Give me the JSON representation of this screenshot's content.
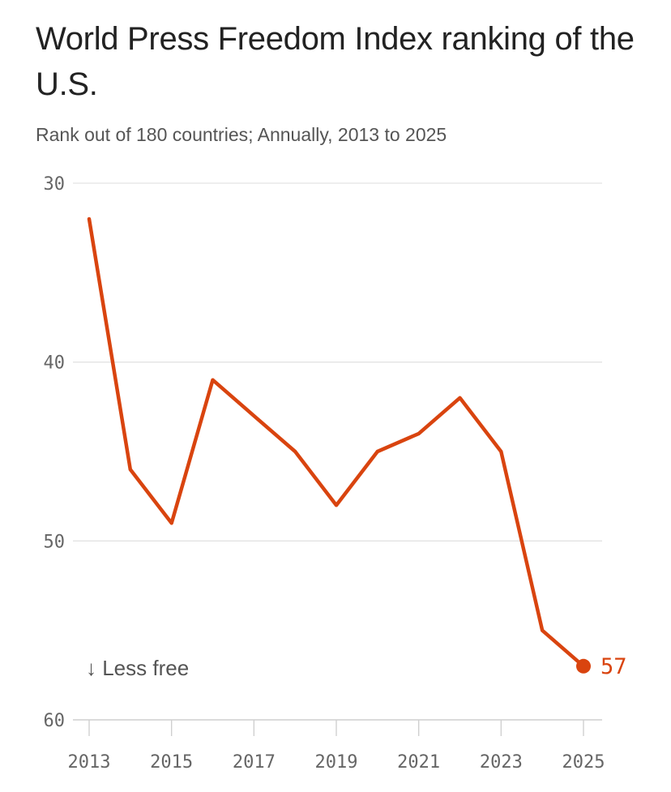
{
  "chart_data": {
    "type": "line",
    "title": "World Press Freedom Index ranking of the U.S.",
    "subtitle": "Rank out of 180 countries; Annually, 2013 to 2025",
    "x": [
      2013,
      2014,
      2015,
      2016,
      2017,
      2018,
      2019,
      2020,
      2021,
      2022,
      2023,
      2024,
      2025
    ],
    "series": [
      {
        "values": [
          32,
          46,
          49,
          41,
          43,
          45,
          48,
          45,
          44,
          42,
          45,
          55,
          57
        ]
      }
    ],
    "xticks": [
      "2013",
      "2015",
      "2017",
      "2019",
      "2021",
      "2023",
      "2025"
    ],
    "yticks": [
      "30",
      "40",
      "50",
      "60"
    ],
    "ylim": [
      30,
      60
    ],
    "y_inverted": true,
    "grid": true,
    "annotation": "↓ Less free",
    "end_label": "57",
    "line_color": "#d9440f"
  }
}
